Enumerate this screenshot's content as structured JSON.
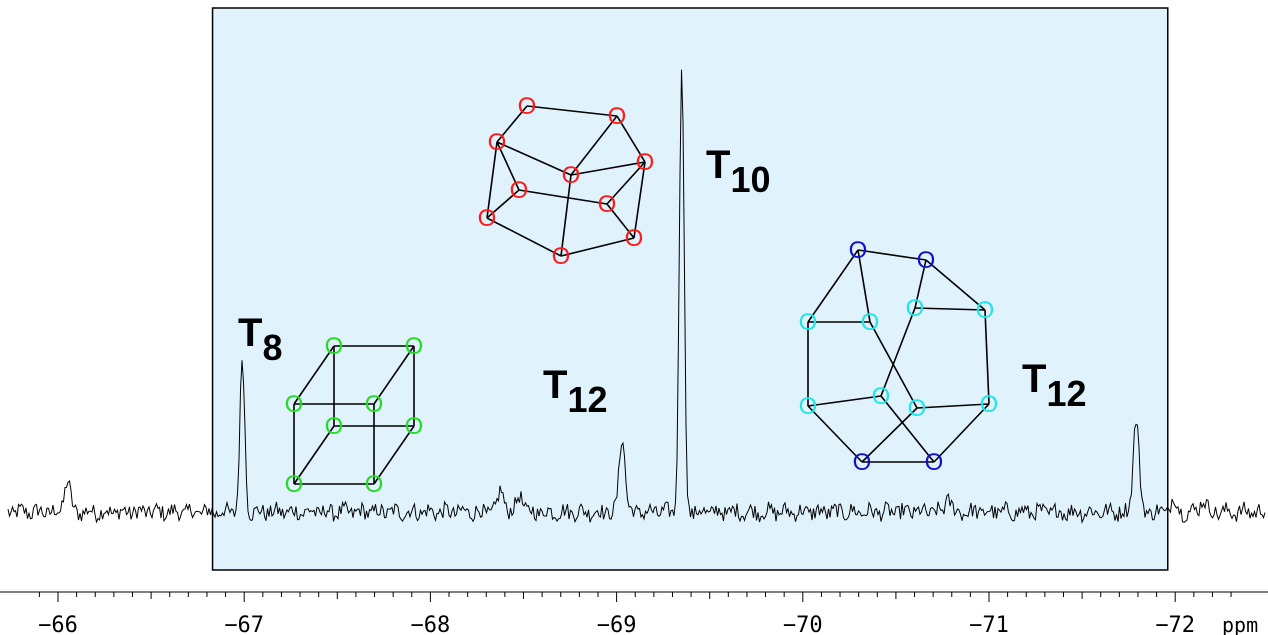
{
  "chart_data": {
    "type": "line",
    "title": "",
    "xlabel": "ppm",
    "ylabel": "",
    "x_reversed": true,
    "xlim": [
      -65.9,
      -72.35
    ],
    "x_ticks": [
      -66,
      -67,
      -68,
      -69,
      -70,
      -71,
      -72
    ],
    "x_tick_labels": [
      "−66",
      "−67",
      "−68",
      "−69",
      "−70",
      "−71",
      "−72"
    ],
    "minor_tick_step": 0.1,
    "grid": false,
    "y_units": "relative intensity (T10 peak = 1.0)",
    "peaks": [
      {
        "ppm": -66.05,
        "height": 0.07
      },
      {
        "ppm": -66.99,
        "height": 0.34
      },
      {
        "ppm": -68.38,
        "height": 0.05
      },
      {
        "ppm": -68.48,
        "height": 0.04
      },
      {
        "ppm": -69.03,
        "height": 0.17
      },
      {
        "ppm": -69.35,
        "height": 1.0
      },
      {
        "ppm": -70.78,
        "height": 0.03
      },
      {
        "ppm": -71.79,
        "height": 0.21
      },
      {
        "ppm": -71.99,
        "height": 0.03
      },
      {
        "ppm": -72.15,
        "height": 0.03
      }
    ],
    "highlight_region_ppm": [
      -66.83,
      -71.96
    ],
    "highlight_color": "#e0f2fc",
    "line_color": "#000000",
    "annotations": [
      {
        "text": "T",
        "sub": "8",
        "near_ppm": -67.1
      },
      {
        "text": "T",
        "sub": "12",
        "near_ppm": -68.85
      },
      {
        "text": "T",
        "sub": "10",
        "near_ppm": -69.6
      },
      {
        "text": "T",
        "sub": "12",
        "near_ppm": -71.6
      }
    ]
  },
  "atom_label": "O",
  "colors": {
    "t8_cage": "#22dd22",
    "t10_cage": "#ff1a1a",
    "t12_cage_blue": "#1111cc",
    "t12_cage_cyan": "#22e5e5",
    "bond": "#000000"
  }
}
